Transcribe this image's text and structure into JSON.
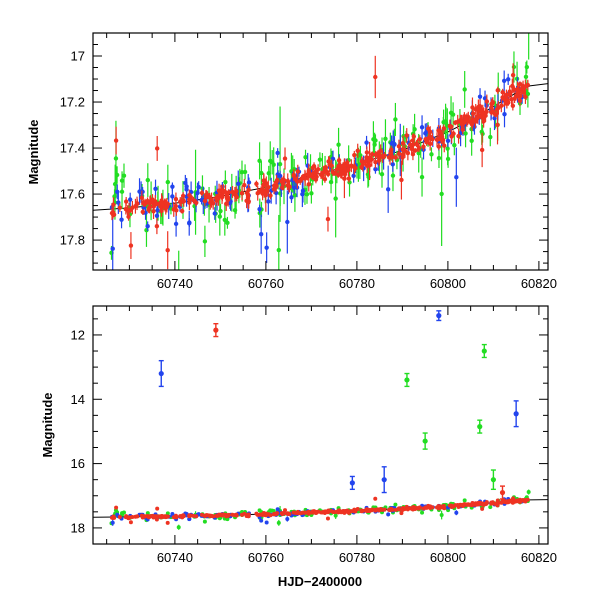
{
  "chart_data": [
    {
      "type": "scatter",
      "panel": "top",
      "xlabel": "",
      "ylabel": "Magnitude",
      "xlim": [
        60722,
        60822
      ],
      "ylim": [
        17.93,
        16.9
      ],
      "y_inverted": true,
      "x_ticks": [
        60740,
        60760,
        60780,
        60800,
        60820
      ],
      "y_ticks": [
        17,
        17.2,
        17.4,
        17.6,
        17.8
      ],
      "x_tick_labels": [
        "60740",
        "60760",
        "60780",
        "60800",
        "60820"
      ],
      "y_tick_labels": [
        "17",
        "17.2",
        "17.4",
        "17.6",
        "17.8"
      ],
      "grid": false,
      "model_curve": {
        "color": "#000000",
        "x": [
          60722,
          60730,
          60740,
          60750,
          60760,
          60770,
          60780,
          60790,
          60800,
          60805,
          60810,
          60815,
          60818,
          60822
        ],
        "y": [
          17.67,
          17.66,
          17.64,
          17.61,
          17.57,
          17.52,
          17.47,
          17.41,
          17.33,
          17.28,
          17.22,
          17.16,
          17.13,
          17.12
        ]
      },
      "series": [
        {
          "color": "#22dd22",
          "scatter": 0.07,
          "err": 0.05,
          "density": 1.0
        },
        {
          "color": "#2244ee",
          "scatter": 0.04,
          "err": 0.035,
          "density": 0.8
        },
        {
          "color": "#ee3322",
          "scatter": 0.02,
          "err": 0.02,
          "density": 2.5
        }
      ]
    },
    {
      "type": "scatter",
      "panel": "bottom",
      "xlabel": "HJD−2400000",
      "ylabel": "Magnitude",
      "xlim": [
        60722,
        60822
      ],
      "ylim": [
        18.5,
        11.1
      ],
      "y_inverted": true,
      "x_ticks": [
        60740,
        60760,
        60780,
        60800,
        60820
      ],
      "y_ticks": [
        12,
        14,
        16,
        18
      ],
      "x_tick_labels": [
        "60740",
        "60760",
        "60780",
        "60800",
        "60820"
      ],
      "y_tick_labels": [
        "12",
        "14",
        "16",
        "18"
      ],
      "grid": false,
      "model_curve": {
        "color": "#000000",
        "x": [
          60722,
          60740,
          60760,
          60780,
          60800,
          60810,
          60818,
          60822
        ],
        "y": [
          17.67,
          17.64,
          17.57,
          17.47,
          17.33,
          17.22,
          17.13,
          17.12
        ]
      },
      "outliers": [
        {
          "color": "#2244ee",
          "x": 60737,
          "y": 13.2,
          "err": 0.4
        },
        {
          "color": "#ee3322",
          "x": 60749,
          "y": 11.85,
          "err": 0.2
        },
        {
          "color": "#2244ee",
          "x": 60798,
          "y": 11.4,
          "err": 0.15
        },
        {
          "color": "#22dd22",
          "x": 60791,
          "y": 13.4,
          "err": 0.2
        },
        {
          "color": "#22dd22",
          "x": 60795,
          "y": 15.3,
          "err": 0.25
        },
        {
          "color": "#22dd22",
          "x": 60807,
          "y": 14.85,
          "err": 0.2
        },
        {
          "color": "#22dd22",
          "x": 60808,
          "y": 12.5,
          "err": 0.2
        },
        {
          "color": "#2244ee",
          "x": 60815,
          "y": 14.45,
          "err": 0.4
        },
        {
          "color": "#2244ee",
          "x": 60786,
          "y": 16.5,
          "err": 0.4
        },
        {
          "color": "#2244ee",
          "x": 60779,
          "y": 16.6,
          "err": 0.2
        },
        {
          "color": "#22dd22",
          "x": 60810,
          "y": 16.5,
          "err": 0.3
        },
        {
          "color": "#ee3322",
          "x": 60812,
          "y": 16.9,
          "err": 0.2
        }
      ]
    }
  ]
}
